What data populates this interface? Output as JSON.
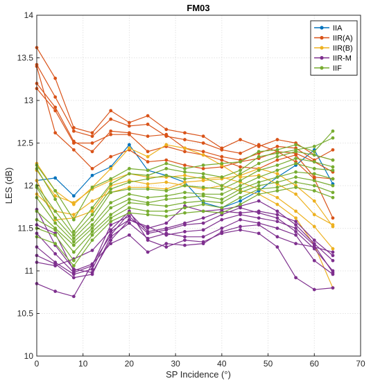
{
  "chart_data": {
    "type": "line",
    "title": "FM03",
    "xlabel": "SP Incidence (°)",
    "ylabel": "LES (dB)",
    "xlim": [
      0,
      70
    ],
    "ylim": [
      10,
      14
    ],
    "xticks": [
      0,
      10,
      20,
      30,
      40,
      50,
      60,
      70
    ],
    "yticks": [
      10,
      10.5,
      11,
      11.5,
      12,
      12.5,
      13,
      13.5,
      14
    ],
    "grid": true,
    "legend_position": "top-right",
    "x": [
      0,
      4,
      8,
      12,
      16,
      20,
      24,
      28,
      32,
      36,
      40,
      44,
      48,
      52,
      56,
      60,
      64
    ],
    "series": [
      {
        "name": "IIA",
        "color": "#0072BD",
        "lines": [
          [
            12.06,
            12.09,
            11.88,
            12.12,
            12.22,
            12.48,
            12.18,
            12.12,
            12.04,
            11.8,
            11.74,
            11.82,
            11.94,
            12.1,
            12.24,
            12.42,
            12.02
          ]
        ]
      },
      {
        "name": "IIR(A)",
        "color": "#D95319",
        "lines": [
          [
            13.62,
            13.26,
            12.68,
            12.62,
            12.88,
            12.74,
            12.82,
            12.66,
            12.62,
            12.58,
            12.44,
            12.54,
            12.46,
            12.54,
            12.5,
            12.36,
            12.3
          ],
          [
            13.42,
            13.04,
            12.64,
            12.58,
            12.78,
            12.7,
            12.72,
            12.58,
            12.54,
            12.5,
            12.42,
            12.38,
            12.48,
            12.4,
            12.38,
            12.28,
            12.16
          ],
          [
            13.2,
            12.92,
            12.52,
            12.4,
            12.64,
            12.62,
            12.58,
            12.6,
            12.44,
            12.4,
            12.34,
            12.3,
            12.38,
            12.46,
            12.44,
            12.3,
            12.42
          ],
          [
            13.14,
            12.88,
            12.5,
            12.5,
            12.6,
            12.6,
            12.4,
            12.46,
            12.4,
            12.36,
            12.3,
            12.22,
            12.2,
            12.3,
            12.36,
            12.1,
            12.08
          ],
          [
            13.4,
            12.62,
            12.42,
            12.2,
            12.34,
            12.42,
            12.28,
            12.3,
            12.24,
            12.2,
            12.22,
            12.28,
            12.32,
            12.4,
            12.28,
            12.08,
            11.62
          ]
        ]
      },
      {
        "name": "IIR(B)",
        "color": "#EDB120",
        "lines": [
          [
            12.26,
            11.94,
            11.78,
            11.98,
            12.2,
            12.44,
            12.34,
            12.48,
            12.44,
            12.36,
            12.24,
            12.1,
            12.12,
            12.02,
            11.9,
            11.66,
            11.54
          ],
          [
            12.18,
            11.88,
            11.8,
            11.96,
            12.06,
            12.14,
            12.1,
            12.1,
            12.12,
            12.08,
            12.1,
            12.04,
            11.96,
            11.86,
            11.7,
            11.52,
            11.26
          ],
          [
            12.06,
            11.6,
            11.62,
            11.7,
            12.0,
            12.06,
            12.02,
            12.04,
            12.0,
            11.96,
            12.0,
            11.94,
            11.9,
            11.78,
            11.62,
            11.3,
            10.8
          ],
          [
            11.9,
            11.7,
            11.66,
            11.82,
            11.92,
            11.98,
            11.98,
            11.96,
            12.04,
            12.06,
            12.08,
            12.12,
            12.2,
            12.14,
            12.0,
            11.82,
            11.52
          ]
        ]
      },
      {
        "name": "IIR-M",
        "color": "#7E2F8E",
        "lines": [
          [
            11.44,
            11.2,
            10.98,
            11.06,
            11.54,
            11.64,
            11.44,
            11.48,
            11.54,
            11.56,
            11.66,
            11.74,
            11.68,
            11.62,
            11.46,
            11.26,
            11.0
          ],
          [
            11.28,
            11.1,
            10.96,
            11.02,
            11.46,
            11.6,
            11.52,
            11.42,
            11.46,
            11.48,
            11.6,
            11.66,
            11.62,
            11.58,
            11.5,
            11.3,
            10.98
          ],
          [
            11.18,
            11.08,
            10.92,
            10.96,
            11.4,
            11.56,
            11.38,
            11.44,
            11.4,
            11.4,
            11.5,
            11.6,
            11.56,
            11.5,
            11.42,
            11.12,
            10.96
          ],
          [
            11.1,
            11.06,
            11.14,
            11.24,
            11.48,
            11.7,
            11.36,
            11.28,
            11.36,
            11.34,
            11.44,
            11.48,
            11.44,
            11.28,
            10.92,
            10.78,
            10.8
          ],
          [
            10.85,
            10.76,
            10.7,
            11.08,
            11.32,
            11.42,
            11.22,
            11.32,
            11.3,
            11.32,
            11.46,
            11.52,
            11.54,
            11.4,
            11.32,
            11.28,
            11.22
          ],
          [
            11.72,
            11.3,
            11.02,
            10.98,
            11.36,
            11.6,
            11.5,
            11.56,
            11.76,
            11.7,
            11.72,
            11.76,
            11.82,
            11.7,
            11.54,
            11.32,
            11.12
          ],
          [
            11.54,
            11.44,
            11.0,
            11.08,
            11.42,
            11.68,
            11.46,
            11.5,
            11.56,
            11.62,
            11.7,
            11.68,
            11.7,
            11.66,
            11.58,
            11.36,
            11.18
          ]
        ]
      },
      {
        "name": "IIF",
        "color": "#77AC30",
        "lines": [
          [
            12.24,
            11.94,
            11.6,
            11.98,
            12.08,
            12.2,
            12.18,
            12.26,
            12.2,
            12.24,
            12.26,
            12.28,
            12.4,
            12.42,
            12.48,
            12.4,
            12.64
          ],
          [
            12.2,
            11.84,
            11.46,
            11.74,
            12.02,
            12.14,
            12.12,
            12.2,
            12.16,
            12.14,
            12.1,
            12.18,
            12.34,
            12.38,
            12.42,
            12.46,
            12.56
          ],
          [
            12.0,
            11.7,
            11.42,
            11.66,
            11.96,
            12.04,
            12.08,
            12.12,
            12.08,
            12.1,
            12.0,
            12.14,
            12.26,
            12.34,
            12.4,
            12.36,
            12.3
          ],
          [
            11.98,
            11.62,
            11.38,
            11.6,
            11.92,
            11.96,
            11.96,
            11.94,
            12.0,
            11.98,
            11.96,
            12.06,
            12.18,
            12.24,
            12.32,
            12.28,
            12.22
          ],
          [
            11.86,
            11.56,
            11.34,
            11.54,
            11.8,
            11.9,
            11.86,
            11.88,
            11.92,
            11.9,
            11.9,
            12.0,
            12.1,
            12.18,
            12.26,
            12.2,
            12.18
          ],
          [
            11.7,
            11.5,
            11.3,
            11.5,
            11.74,
            11.84,
            11.8,
            11.84,
            11.86,
            11.88,
            11.84,
            11.96,
            12.04,
            12.1,
            12.16,
            12.14,
            12.08
          ],
          [
            11.6,
            11.48,
            11.22,
            11.46,
            11.66,
            11.8,
            11.78,
            11.76,
            11.8,
            11.82,
            11.8,
            11.92,
            12.0,
            12.04,
            12.1,
            12.06,
            12.0
          ],
          [
            11.5,
            11.42,
            11.12,
            11.42,
            11.62,
            11.74,
            11.7,
            11.7,
            11.74,
            11.78,
            11.74,
            11.86,
            11.96,
            11.98,
            12.04,
            12.0,
            11.92
          ],
          [
            11.4,
            11.32,
            11.06,
            11.36,
            11.58,
            11.68,
            11.66,
            11.64,
            11.68,
            11.7,
            11.68,
            11.78,
            11.9,
            11.94,
            11.98,
            11.94,
            11.86
          ]
        ]
      }
    ]
  }
}
